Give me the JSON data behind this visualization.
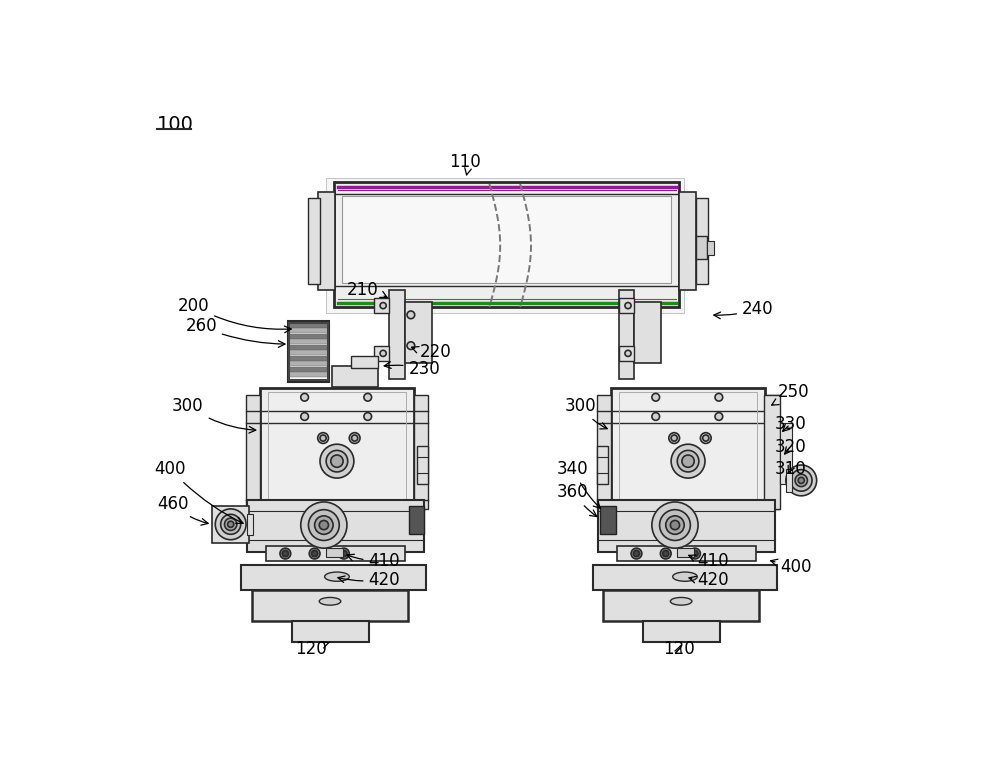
{
  "bg": "#ffffff",
  "lc": "#2a2a2a",
  "gc": "#228822",
  "pc": "#882288",
  "f1": "#eeeeee",
  "f2": "#e0e0e0",
  "f3": "#d0d0d0",
  "f4": "#c0c0c0",
  "f5": "#aaaaaa",
  "f6": "#888888",
  "f7": "#555555",
  "figsize": [
    10.0,
    7.63
  ],
  "dpi": 100
}
